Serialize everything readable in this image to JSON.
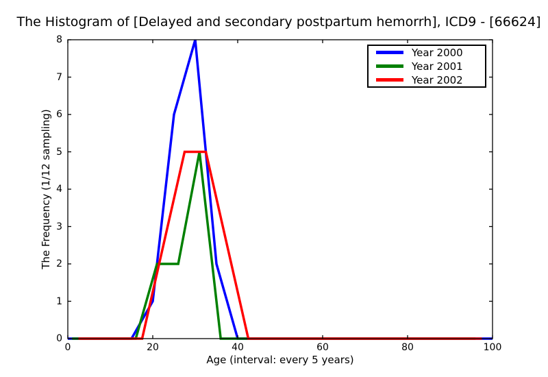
{
  "title": "The Histogram of [Delayed and secondary postpartum hemorrh], ICD9 - [66624]",
  "legend": {
    "items": [
      {
        "label": "Year 2000",
        "color": "#0000ff"
      },
      {
        "label": "Year 2001",
        "color": "#008000"
      },
      {
        "label": "Year 2002",
        "color": "#ff0000"
      }
    ]
  },
  "chart_data": {
    "type": "line",
    "title": "The Histogram of [Delayed and secondary postpartum hemorrh], ICD9 - [66624]",
    "xlabel": "Age (interval: every 5 years)",
    "ylabel": "The Frequency (1/12 sampling)",
    "xlim": [
      0,
      100
    ],
    "ylim": [
      0,
      8
    ],
    "xticks": [
      0,
      20,
      40,
      60,
      80,
      100
    ],
    "yticks": [
      0,
      1,
      2,
      3,
      4,
      5,
      6,
      7,
      8
    ],
    "grid": false,
    "legend_position": "upper right",
    "line_width": 3.5,
    "background_color": "#ffffff",
    "axis_color": "#000000",
    "series": [
      {
        "name": "Year 2000",
        "color": "#0000ff",
        "x": [
          0,
          5,
          10,
          15,
          20,
          25,
          30,
          35,
          40,
          45,
          50,
          55,
          60,
          65,
          70,
          75,
          80,
          85,
          90,
          95,
          100
        ],
        "y": [
          0,
          0,
          0,
          0,
          1,
          6,
          8,
          2,
          0,
          0,
          0,
          0,
          0,
          0,
          0,
          0,
          0,
          0,
          0,
          0,
          0
        ]
      },
      {
        "name": "Year 2001",
        "color": "#008000",
        "x": [
          1,
          6,
          11,
          16,
          21,
          26,
          31,
          36,
          41,
          46,
          51,
          56,
          61,
          66,
          71,
          76,
          81,
          86,
          91,
          96
        ],
        "y": [
          0,
          0,
          0,
          0,
          2,
          2,
          5,
          0,
          0,
          0,
          0,
          0,
          0,
          0,
          0,
          0,
          0,
          0,
          0,
          0
        ]
      },
      {
        "name": "Year 2002",
        "color": "#ff0000",
        "x": [
          2.5,
          7.5,
          12.5,
          17.5,
          22.5,
          27.5,
          32.5,
          37.5,
          42.5,
          47.5,
          52.5,
          57.5,
          62.5,
          67.5,
          72.5,
          77.5,
          82.5,
          87.5,
          92.5,
          97.5
        ],
        "y": [
          0,
          0,
          0,
          0,
          2.5,
          5,
          5,
          2.5,
          0,
          0,
          0,
          0,
          0,
          0,
          0,
          0,
          0,
          0,
          0,
          0
        ]
      }
    ]
  }
}
